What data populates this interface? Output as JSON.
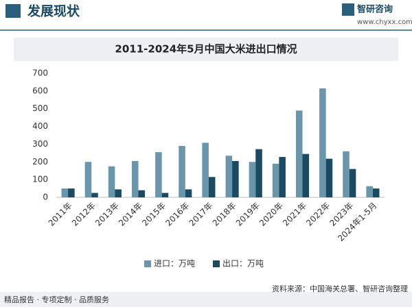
{
  "header": {
    "title": "发展现状",
    "logo": "智研咨询",
    "url": "www.chyxx.com"
  },
  "chart_data": {
    "type": "bar",
    "title": "2011-2024年5月中国大米进出口情况",
    "categories": [
      "2011年",
      "2012年",
      "2013年",
      "2014年",
      "2015年",
      "2016年",
      "2017年",
      "2018年",
      "2019年",
      "2020年",
      "2021年",
      "2022年",
      "2023年",
      "2024年1-5月"
    ],
    "series": [
      {
        "name": "进口：万吨",
        "color": "#6a96ab",
        "values": [
          50,
          200,
          175,
          205,
          255,
          290,
          308,
          235,
          200,
          190,
          490,
          615,
          260,
          63
        ]
      },
      {
        "name": "出口：万吨",
        "color": "#1b4a63",
        "values": [
          50,
          25,
          45,
          40,
          25,
          45,
          115,
          205,
          272,
          228,
          245,
          218,
          160,
          50
        ]
      }
    ],
    "ylim": [
      0,
      700
    ],
    "yticks": [
      0,
      100,
      200,
      300,
      400,
      500,
      600,
      700
    ],
    "grid": false,
    "legend": "bottom"
  },
  "footer": {
    "left": "精品报告 · 专项定制 · 品质服务",
    "source": "资料来源：中国海关总署、智研咨询整理"
  }
}
